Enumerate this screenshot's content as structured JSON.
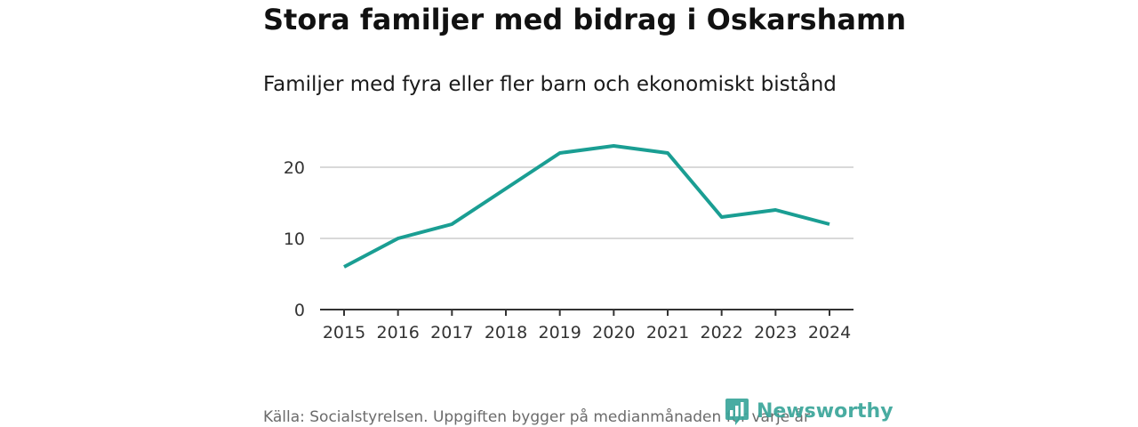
{
  "header": {
    "title": "Stora familjer med bidrag i Oskarshamn",
    "subtitle": "Familjer med fyra eller fler barn och ekonomiskt bistånd"
  },
  "footer": {
    "source": "Källa: Socialstyrelsen. Uppgiften bygger på medianmånaden för varje år",
    "logo_text": "Newsworthy",
    "logo_icon": "bar-chart-badge-icon"
  },
  "colors": {
    "line": "#1a9e93",
    "grid": "#d9d9d9",
    "axis": "#333333",
    "logo": "#3aa59a"
  },
  "chart_data": {
    "type": "line",
    "title": "Stora familjer med bidrag i Oskarshamn",
    "subtitle": "Familjer med fyra eller fler barn och ekonomiskt bistånd",
    "xlabel": "",
    "ylabel": "",
    "x": [
      "2015",
      "2016",
      "2017",
      "2018",
      "2019",
      "2020",
      "2021",
      "2022",
      "2023",
      "2024"
    ],
    "series": [
      {
        "values": [
          6,
          10,
          12,
          17,
          22,
          23,
          22,
          13,
          14,
          12
        ]
      }
    ],
    "yticks": [
      0,
      10,
      20
    ],
    "ylim": [
      0,
      25
    ],
    "grid": true,
    "legend": "none"
  }
}
